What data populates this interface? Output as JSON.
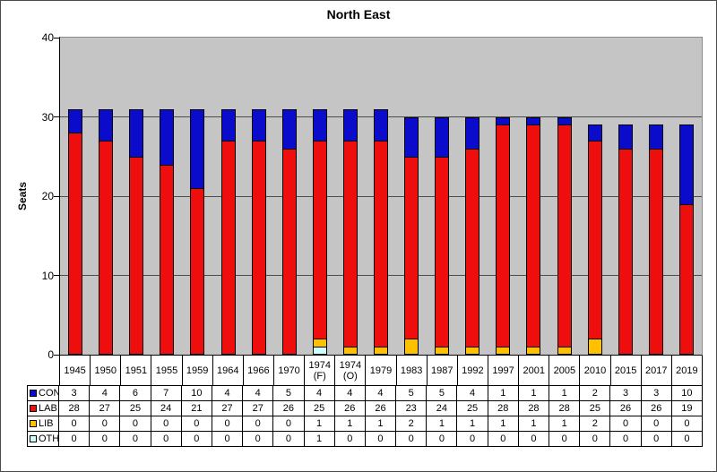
{
  "chart_data": {
    "type": "bar",
    "stacked": true,
    "title": "North East",
    "xlabel": "",
    "ylabel": "Seats",
    "ylim": [
      0,
      40
    ],
    "yticks": [
      0,
      10,
      20,
      30,
      40
    ],
    "grid": "horizontal",
    "plot_background": "#C5C5C5",
    "legend_position": "table-left",
    "categories": [
      "1945",
      "1950",
      "1951",
      "1955",
      "1959",
      "1964",
      "1966",
      "1970",
      "1974 (F)",
      "1974 (O)",
      "1979",
      "1983",
      "1987",
      "1992",
      "1997",
      "2001",
      "2005",
      "2010",
      "2015",
      "2017",
      "2019"
    ],
    "series": [
      {
        "name": "CON",
        "color": "#0B0BCC",
        "values": [
          3,
          4,
          6,
          7,
          10,
          4,
          4,
          5,
          4,
          4,
          4,
          5,
          5,
          4,
          1,
          1,
          1,
          2,
          3,
          3,
          10
        ]
      },
      {
        "name": "LAB",
        "color": "#EE0E0E",
        "values": [
          28,
          27,
          25,
          24,
          21,
          27,
          27,
          26,
          25,
          26,
          26,
          23,
          24,
          25,
          28,
          28,
          28,
          25,
          26,
          26,
          19
        ]
      },
      {
        "name": "LIB",
        "color": "#FFC000",
        "values": [
          0,
          0,
          0,
          0,
          0,
          0,
          0,
          0,
          1,
          1,
          1,
          2,
          1,
          1,
          1,
          1,
          1,
          2,
          0,
          0,
          0
        ]
      },
      {
        "name": "OTH",
        "color": "#CCFFFF",
        "values": [
          0,
          0,
          0,
          0,
          0,
          0,
          0,
          0,
          1,
          0,
          0,
          0,
          0,
          0,
          0,
          0,
          0,
          0,
          0,
          0,
          0
        ]
      }
    ],
    "stack_order_bottom_to_top": [
      "OTH",
      "LIB",
      "LAB",
      "CON"
    ]
  }
}
